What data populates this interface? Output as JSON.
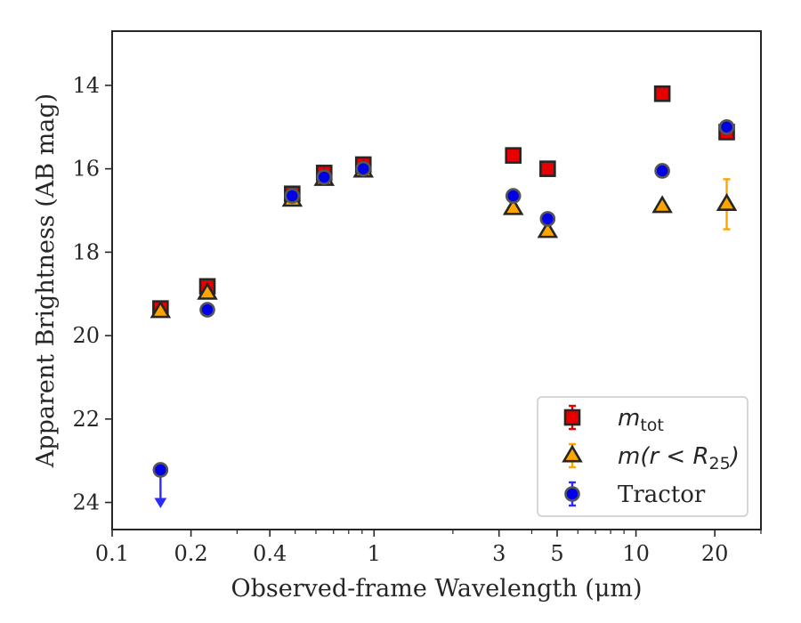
{
  "chart_data": {
    "type": "scatter",
    "xlabel": "Observed-frame Wavelength (μm)",
    "ylabel": "Apparent Brightness (AB mag)",
    "x_scale": "log",
    "xlim": [
      0.1,
      30
    ],
    "ylim": [
      24.65,
      12.7
    ],
    "y_inverted": true,
    "x_major_ticks": [
      {
        "value": 0.1,
        "label": "0.1"
      },
      {
        "value": 0.2,
        "label": "0.2"
      },
      {
        "value": 0.4,
        "label": "0.4"
      },
      {
        "value": 1,
        "label": "1"
      },
      {
        "value": 3,
        "label": "3"
      },
      {
        "value": 5,
        "label": "5"
      },
      {
        "value": 10,
        "label": "10"
      },
      {
        "value": 20,
        "label": "20"
      }
    ],
    "x_minor_ticks": [
      0.3,
      0.5,
      0.6,
      0.7,
      0.8,
      0.9,
      2,
      4,
      6,
      7,
      8,
      9,
      30
    ],
    "y_ticks": [
      {
        "value": 14,
        "label": "14"
      },
      {
        "value": 16,
        "label": "16"
      },
      {
        "value": 18,
        "label": "18"
      },
      {
        "value": 20,
        "label": "20"
      },
      {
        "value": 22,
        "label": "22"
      },
      {
        "value": 24,
        "label": "24"
      }
    ],
    "grid": false,
    "legend_position": "bottom-right",
    "series": [
      {
        "name": "m_tot",
        "legend_main": "m",
        "legend_sub": "tot",
        "marker": "square",
        "face_color": "#e80000",
        "error_color": "#e80000",
        "points": [
          {
            "x": 0.153,
            "y": 19.35,
            "err": 0.05
          },
          {
            "x": 0.231,
            "y": 18.82,
            "err": 0.05
          },
          {
            "x": 0.487,
            "y": 16.6,
            "err": 0.05
          },
          {
            "x": 0.645,
            "y": 16.1,
            "err": 0.05
          },
          {
            "x": 0.91,
            "y": 15.9,
            "err": 0.05
          },
          {
            "x": 3.4,
            "y": 15.68,
            "err": 0.05
          },
          {
            "x": 4.6,
            "y": 16.0,
            "err": 0.05
          },
          {
            "x": 12.6,
            "y": 14.2,
            "err": 0.05
          },
          {
            "x": 22.2,
            "y": 15.12,
            "err": 0.08
          }
        ]
      },
      {
        "name": "m(r < R_25)",
        "legend_main": "m(r < R",
        "legend_sub": "25",
        "legend_tail": ")",
        "marker": "triangle",
        "face_color": "#ffa500",
        "error_color": "#ffa500",
        "points": [
          {
            "x": 0.153,
            "y": 19.42,
            "err": 0.05
          },
          {
            "x": 0.231,
            "y": 18.98,
            "err": 0.05
          },
          {
            "x": 0.487,
            "y": 16.75,
            "err": 0.05
          },
          {
            "x": 0.645,
            "y": 16.25,
            "err": 0.05
          },
          {
            "x": 0.91,
            "y": 16.05,
            "err": 0.05
          },
          {
            "x": 3.4,
            "y": 16.95,
            "err": 0.05
          },
          {
            "x": 4.6,
            "y": 17.5,
            "err": 0.05
          },
          {
            "x": 12.6,
            "y": 16.9,
            "err": 0.1
          },
          {
            "x": 22.2,
            "y": 16.85,
            "err": 0.6
          }
        ]
      },
      {
        "name": "Tractor",
        "legend_main": "Tractor",
        "marker": "circle",
        "face_color": "#0000e6",
        "error_color": "#2b2bff",
        "points": [
          {
            "x": 0.153,
            "y": 23.22,
            "upper_limit": true
          },
          {
            "x": 0.231,
            "y": 19.38,
            "err": 0.05
          },
          {
            "x": 0.487,
            "y": 16.65,
            "err": 0.05
          },
          {
            "x": 0.645,
            "y": 16.2,
            "err": 0.05
          },
          {
            "x": 0.91,
            "y": 16.0,
            "err": 0.05
          },
          {
            "x": 3.4,
            "y": 16.65,
            "err": 0.05
          },
          {
            "x": 4.6,
            "y": 17.2,
            "err": 0.05
          },
          {
            "x": 12.6,
            "y": 16.05,
            "err": 0.05
          },
          {
            "x": 22.2,
            "y": 15.0,
            "err": 0.05
          }
        ]
      }
    ]
  }
}
